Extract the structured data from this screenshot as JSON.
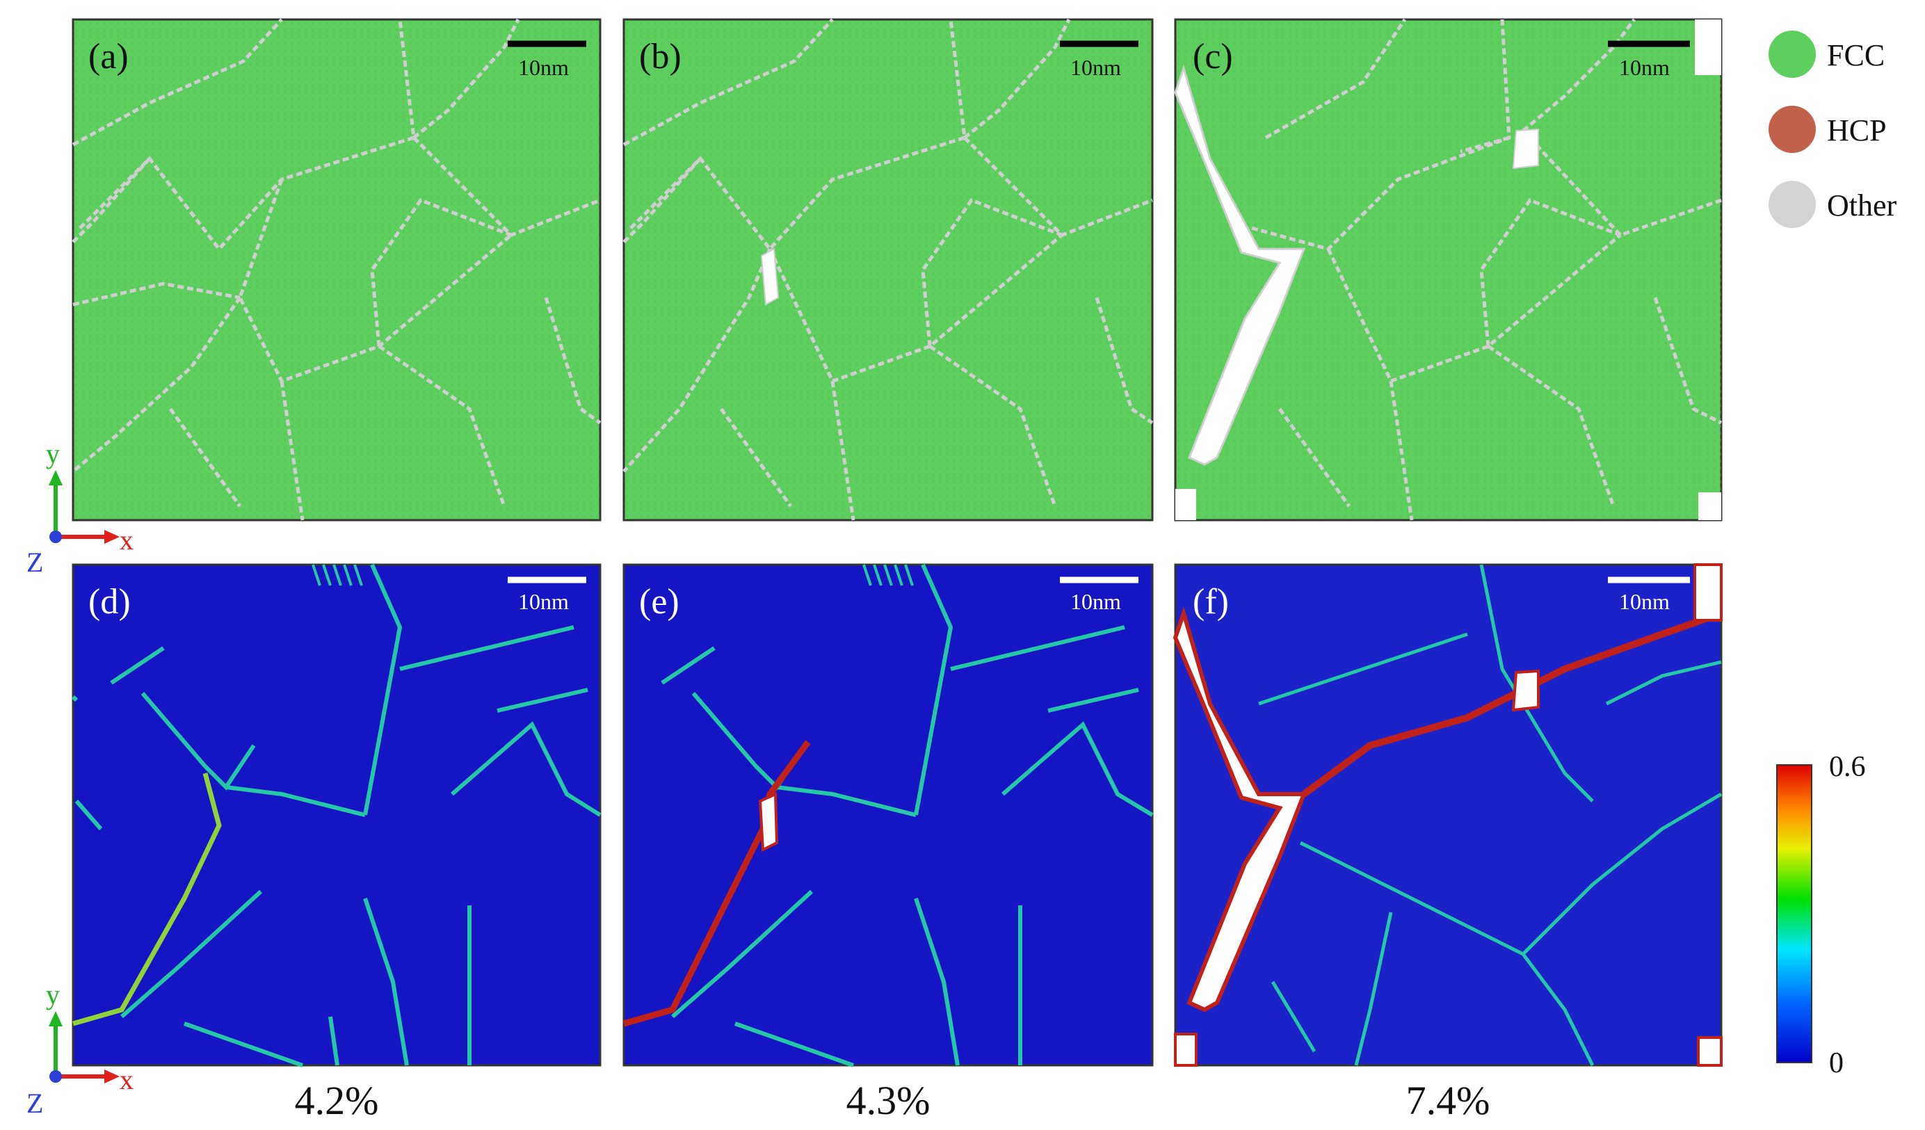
{
  "panels": [
    {
      "label": "(a)",
      "scale_bar": "10nm",
      "kind": "structure",
      "crack": "none"
    },
    {
      "label": "(b)",
      "scale_bar": "10nm",
      "kind": "structure",
      "crack": "small"
    },
    {
      "label": "(c)",
      "scale_bar": "10nm",
      "kind": "structure",
      "crack": "large"
    },
    {
      "label": "(d)",
      "scale_bar": "10nm",
      "kind": "strain",
      "crack": "none"
    },
    {
      "label": "(e)",
      "scale_bar": "10nm",
      "kind": "strain",
      "crack": "small"
    },
    {
      "label": "(f)",
      "scale_bar": "10nm",
      "kind": "strain",
      "crack": "large"
    }
  ],
  "legend": [
    {
      "label": "FCC",
      "color": "#5ecf5e"
    },
    {
      "label": "HCP",
      "color": "#c0614a"
    },
    {
      "label": "Other",
      "color": "#d4d4d4"
    }
  ],
  "strain_labels": [
    "4.2%",
    "4.3%",
    "7.4%"
  ],
  "colorbar": {
    "max": "0.6",
    "min": "0"
  },
  "axes": {
    "y": "y",
    "x": "x",
    "z": "Z"
  },
  "colors": {
    "fcc_fill": "#5ecf5e",
    "boundary": "#cfcfcf",
    "strain_bg": "#1515c4",
    "strain_boundary": "#26c7a7",
    "crack_edge": "#c0221a",
    "void": "#ffffff"
  }
}
